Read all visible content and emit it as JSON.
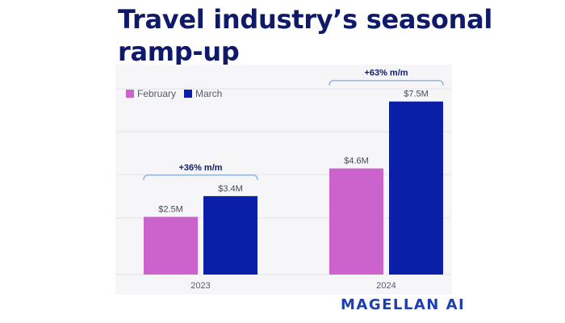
{
  "title": "Travel industry’s seasonal ramp-up",
  "brand": "MAGELLAN AI",
  "colors": {
    "title": "#101a6b",
    "february": "#cc63cc",
    "march": "#0a1fa8",
    "brand": "#1f3fae",
    "bracket": "#8fb8e0"
  },
  "chart_data": {
    "type": "bar",
    "categories": [
      "2023",
      "2024"
    ],
    "series": [
      {
        "name": "February",
        "values": [
          2.5,
          4.6
        ],
        "labels": [
          "$2.5M",
          "$4.6M"
        ]
      },
      {
        "name": "March",
        "values": [
          3.4,
          7.5
        ],
        "labels": [
          "$3.4M",
          "$7.5M"
        ]
      }
    ],
    "annotations": [
      "+36% m/m",
      "+63% m/m"
    ],
    "ylim": [
      0,
      8.4
    ],
    "legend": "top-left",
    "grid": true
  }
}
